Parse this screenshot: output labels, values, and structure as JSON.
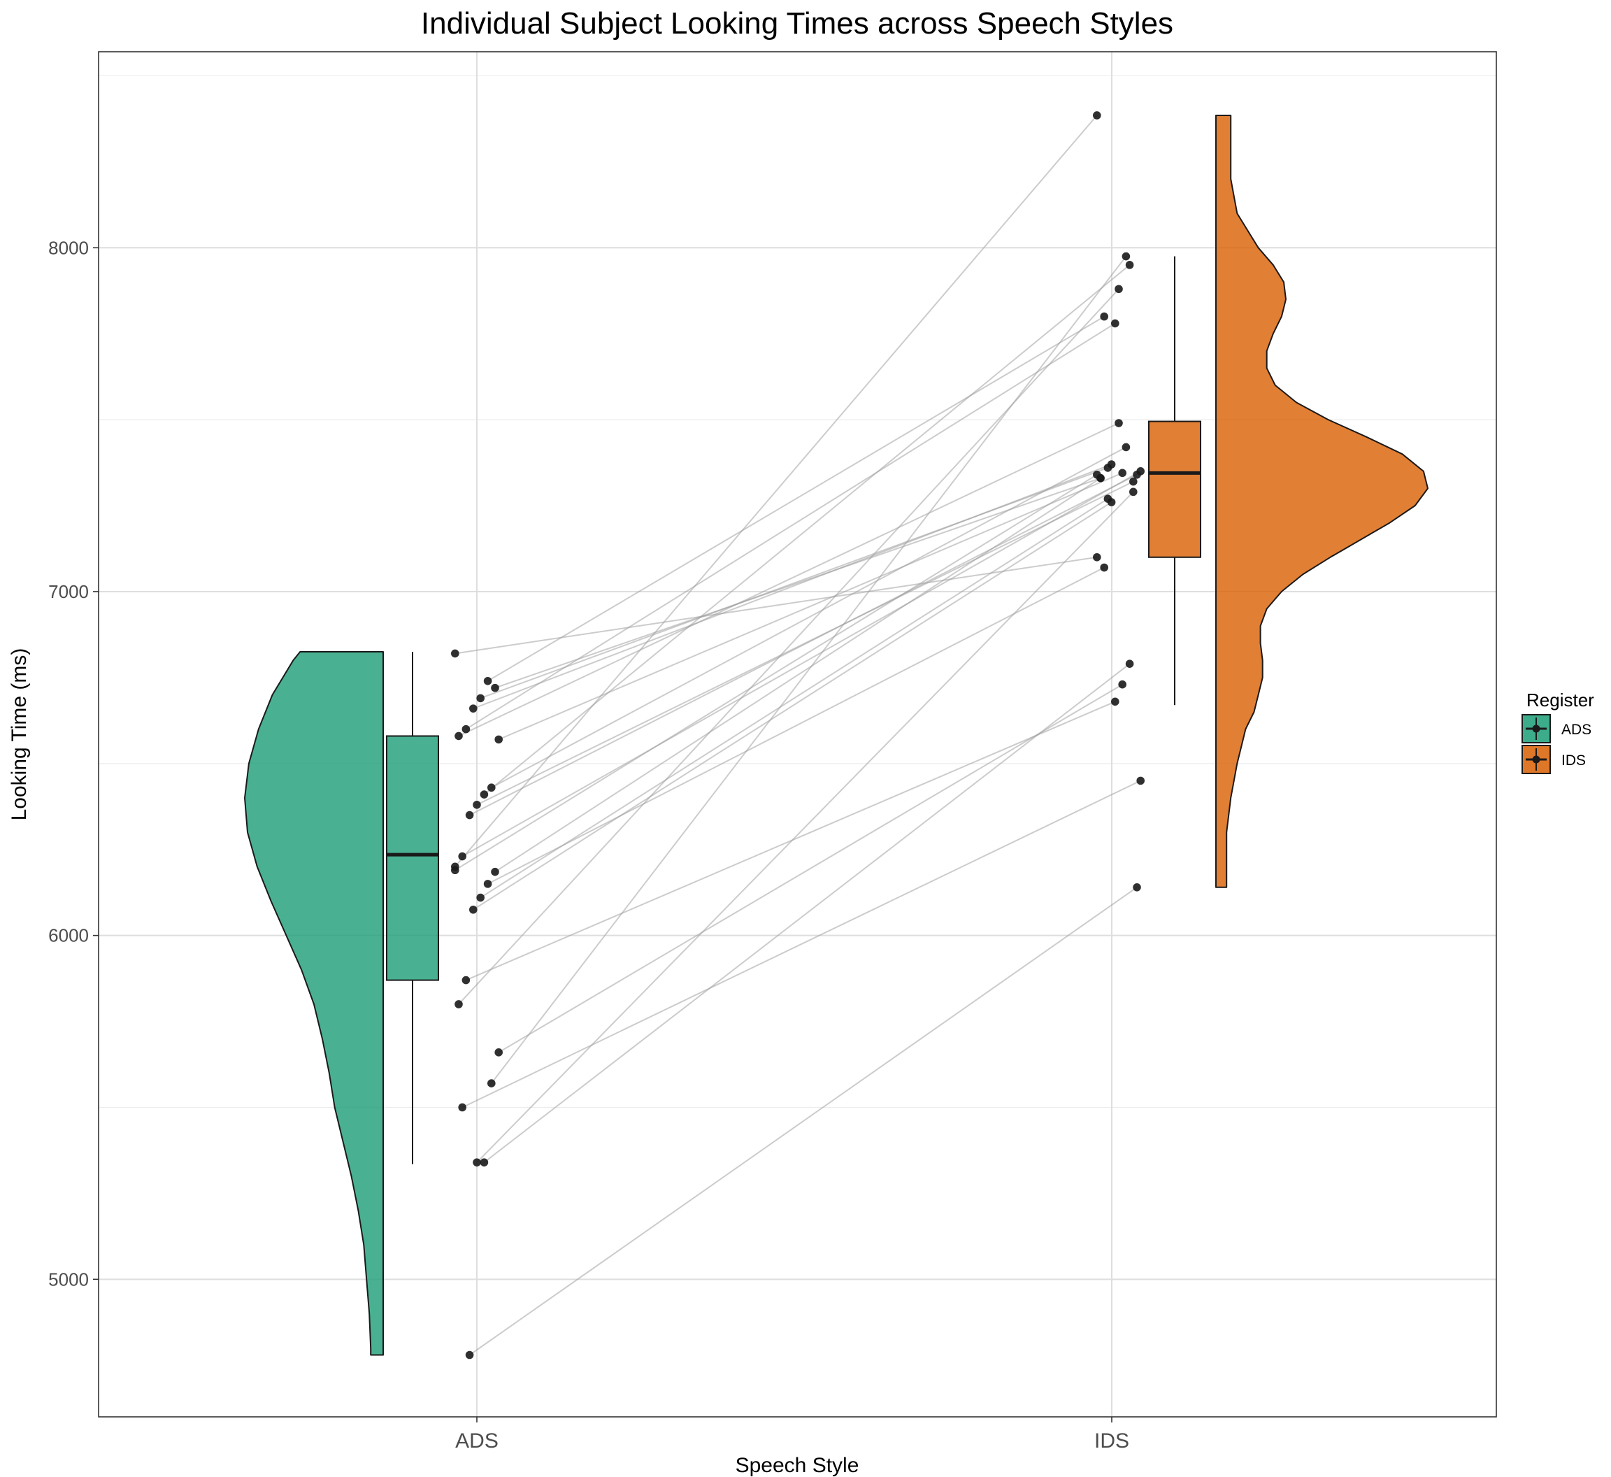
{
  "chart_data": {
    "type": "raincloud",
    "title": "Individual Subject Looking Times across Speech Styles",
    "xlabel": "Speech Style",
    "ylabel": "Looking Time (ms)",
    "categories": [
      "ADS",
      "IDS"
    ],
    "ylim": [
      4600,
      8570
    ],
    "yticks": [
      5000,
      6000,
      7000,
      8000
    ],
    "grid": true,
    "legend": {
      "title": "Register",
      "position": "right",
      "entries": [
        {
          "label": "ADS",
          "color": "#1b9e77"
        },
        {
          "label": "IDS",
          "color": "#d95f02"
        }
      ]
    },
    "colors": {
      "ADS": "#1b9e77",
      "IDS": "#d95f02",
      "lines": "#999999",
      "points": "#1a1a1a"
    },
    "boxplots": {
      "ADS": {
        "min": 5335,
        "q1": 5870,
        "median": 6235,
        "q3": 6580,
        "max": 6825
      },
      "IDS": {
        "min": 6670,
        "q1": 7100,
        "median": 7345,
        "q3": 7495,
        "max": 7975
      }
    },
    "densities": {
      "ADS": {
        "ymin": 4780,
        "ymax": 6825,
        "profile": [
          [
            6825,
            0.6
          ],
          [
            6800,
            0.65
          ],
          [
            6700,
            0.8
          ],
          [
            6600,
            0.9
          ],
          [
            6500,
            0.97
          ],
          [
            6400,
            1.0
          ],
          [
            6300,
            0.98
          ],
          [
            6200,
            0.91
          ],
          [
            6100,
            0.81
          ],
          [
            6000,
            0.7
          ],
          [
            5900,
            0.59
          ],
          [
            5800,
            0.5
          ],
          [
            5700,
            0.44
          ],
          [
            5600,
            0.39
          ],
          [
            5500,
            0.35
          ],
          [
            5400,
            0.29
          ],
          [
            5300,
            0.23
          ],
          [
            5200,
            0.18
          ],
          [
            5100,
            0.14
          ],
          [
            5000,
            0.12
          ],
          [
            4900,
            0.1
          ],
          [
            4800,
            0.09
          ],
          [
            4780,
            0.09
          ]
        ]
      },
      "IDS": {
        "ymin": 6140,
        "ymax": 8385,
        "profile": [
          [
            8385,
            0.07
          ],
          [
            8300,
            0.07
          ],
          [
            8200,
            0.07
          ],
          [
            8100,
            0.1
          ],
          [
            8000,
            0.2
          ],
          [
            7950,
            0.27
          ],
          [
            7900,
            0.32
          ],
          [
            7850,
            0.33
          ],
          [
            7800,
            0.31
          ],
          [
            7750,
            0.27
          ],
          [
            7700,
            0.24
          ],
          [
            7650,
            0.24
          ],
          [
            7600,
            0.28
          ],
          [
            7550,
            0.38
          ],
          [
            7500,
            0.53
          ],
          [
            7450,
            0.71
          ],
          [
            7400,
            0.88
          ],
          [
            7350,
            0.98
          ],
          [
            7300,
            1.0
          ],
          [
            7250,
            0.94
          ],
          [
            7200,
            0.82
          ],
          [
            7150,
            0.68
          ],
          [
            7100,
            0.54
          ],
          [
            7050,
            0.41
          ],
          [
            7000,
            0.31
          ],
          [
            6950,
            0.24
          ],
          [
            6900,
            0.21
          ],
          [
            6850,
            0.21
          ],
          [
            6800,
            0.22
          ],
          [
            6750,
            0.22
          ],
          [
            6700,
            0.2
          ],
          [
            6650,
            0.18
          ],
          [
            6600,
            0.14
          ],
          [
            6550,
            0.12
          ],
          [
            6500,
            0.1
          ],
          [
            6400,
            0.07
          ],
          [
            6300,
            0.05
          ],
          [
            6200,
            0.05
          ],
          [
            6140,
            0.05
          ]
        ]
      }
    },
    "subjects": [
      {
        "ads": 6820,
        "ids": 7100
      },
      {
        "ads": 6720,
        "ids": 7330
      },
      {
        "ads": 6740,
        "ids": 7800
      },
      {
        "ads": 6690,
        "ids": 7360
      },
      {
        "ads": 6660,
        "ids": 7370
      },
      {
        "ads": 6600,
        "ids": 7780
      },
      {
        "ads": 6580,
        "ids": 7490
      },
      {
        "ads": 6570,
        "ids": 7345
      },
      {
        "ads": 6430,
        "ids": 7420
      },
      {
        "ads": 6410,
        "ids": 7950
      },
      {
        "ads": 6380,
        "ids": 7320
      },
      {
        "ads": 6350,
        "ids": 7340
      },
      {
        "ads": 6230,
        "ids": 7350
      },
      {
        "ads": 6190,
        "ids": 7340
      },
      {
        "ads": 6185,
        "ids": 7330
      },
      {
        "ads": 6150,
        "ids": 7070
      },
      {
        "ads": 6110,
        "ids": 7270
      },
      {
        "ads": 6075,
        "ids": 7260
      },
      {
        "ads": 5870,
        "ids": 6680
      },
      {
        "ads": 5800,
        "ids": 7880
      },
      {
        "ads": 5660,
        "ids": 6730
      },
      {
        "ads": 5570,
        "ids": 7975
      },
      {
        "ads": 5340,
        "ids": 6790
      },
      {
        "ads": 5340,
        "ids": 7290
      },
      {
        "ads": 4780,
        "ids": 6140
      },
      {
        "ads": 5500,
        "ids": 6450
      },
      {
        "ads": 6200,
        "ids": 8385
      }
    ]
  }
}
